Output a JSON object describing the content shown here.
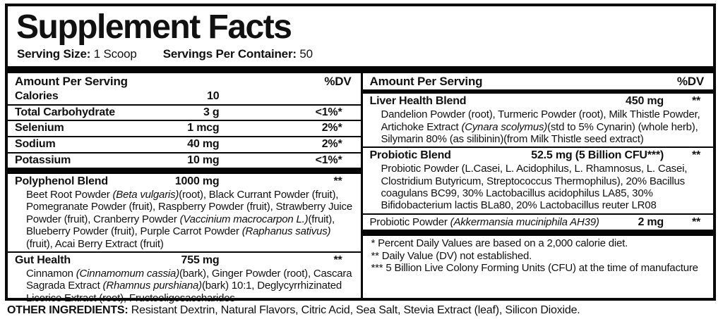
{
  "colors": {
    "text": "#111111",
    "bars": "#050505",
    "background": "#ffffff"
  },
  "title": "Supplement Facts",
  "serving": {
    "size_label": "Serving Size:",
    "size_value": "1 Scoop",
    "container_label": "Servings Per Container:",
    "container_value": "50"
  },
  "header": {
    "amount_label": "Amount Per Serving",
    "dv_label": "%DV"
  },
  "left": {
    "nutrients": [
      {
        "name": "Calories",
        "amount": "10",
        "dv": ""
      },
      {
        "name": "Total Carbohydrate",
        "amount": "3 g",
        "dv": "<1%*"
      },
      {
        "name": "Selenium",
        "amount": "1 mcg",
        "dv": "2%*"
      },
      {
        "name": "Sodium",
        "amount": "40 mg",
        "dv": "2%*"
      },
      {
        "name": "Potassium",
        "amount": "10 mg",
        "dv": "<1%*"
      }
    ],
    "blends": [
      {
        "name": "Polyphenol Blend",
        "amount": "1000 mg",
        "dv": "**",
        "description": [
          {
            "text": "Beet Root Powder ",
            "italic": false
          },
          {
            "text": "(Beta vulgaris)",
            "italic": true
          },
          {
            "text": "(root), Black Currant Powder (fruit), Pomegranate Powder (fruit), Raspberry Powder (fruit), Strawberry Juice Powder (fruit), Cranberry Powder ",
            "italic": false
          },
          {
            "text": "(Vaccinium macrocarpon L.)",
            "italic": true
          },
          {
            "text": "(fruit), Blueberry Powder (fruit), Purple Carrot Powder ",
            "italic": false
          },
          {
            "text": "(Raphanus sativus)",
            "italic": true
          },
          {
            "text": "(fruit), Acai Berry Extract (fruit)",
            "italic": false
          }
        ]
      },
      {
        "name": "Gut Health",
        "amount": "755 mg",
        "dv": "**",
        "description": [
          {
            "text": "Cinnamon ",
            "italic": false
          },
          {
            "text": "(Cinnamomum cassia)",
            "italic": true
          },
          {
            "text": "(bark), Ginger Powder (root), Cascara Sagrada Extract ",
            "italic": false
          },
          {
            "text": "(Rhamnus purshiana)",
            "italic": true
          },
          {
            "text": "(bark) 10:1, Deglycyrrhizinated Licorice Extract (root), Fructooligosaccharides",
            "italic": false
          }
        ]
      }
    ]
  },
  "right": {
    "blends": [
      {
        "name": "Liver Health Blend",
        "amount": "450 mg",
        "dv": "**",
        "description": [
          {
            "text": "Dandelion Powder (root), Turmeric Powder (root), Milk Thistle Powder, Artichoke Extract ",
            "italic": false
          },
          {
            "text": "(Cynara scolymus)",
            "italic": true
          },
          {
            "text": "(std to 5% Cynarin) (whole herb), Silymarin 80% (as silibinin)(from Milk Thistle seed extract)",
            "italic": false
          }
        ]
      },
      {
        "name": "Probiotic Blend",
        "amount": "52.5 mg (5 Billion CFU***)",
        "dv": "**",
        "description": [
          {
            "text": "Probiotic Powder (L.Casei, L. Acidophilus, L. Rhamnosus, L. Casei, Clostridium Butyricum, Streptococcus Thermophilus), 20% Bacillus coagulans BC99, 30% Lactobacillus acidophilus LA85, 30% Bifidobacterium lactis BLa80, 20% Lactobacillus reuter LR08",
            "italic": false
          }
        ]
      }
    ],
    "probiotic_row": {
      "name": [
        {
          "text": "Probiotic Powder ",
          "italic": false
        },
        {
          "text": "(Akkermansia muciniphila AH39)",
          "italic": true
        }
      ],
      "amount": "2 mg",
      "dv": "**"
    },
    "footnotes": [
      "* Percent Daily Values are based on a 2,000 calorie diet.",
      "** Daily Value (DV) not established.",
      "*** 5 Billion Live Colony Forming Units (CFU) at the time of manufacture"
    ]
  },
  "other_ingredients": {
    "label": "OTHER INGREDIENTS:",
    "value": "Resistant Dextrin, Natural Flavors, Citric Acid, Sea Salt, Stevia Extract (leaf), Silicon Dioxide."
  }
}
